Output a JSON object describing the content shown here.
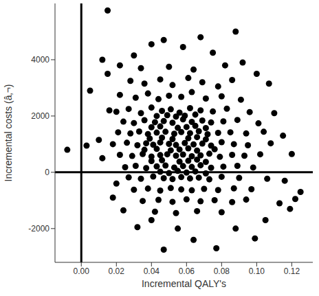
{
  "chart_data": {
    "type": "scatter",
    "xlabel": "Incremental QALY's",
    "ylabel": "Incremental costs (â‚¬)",
    "color": "#000000",
    "marker": "circle",
    "grid": false,
    "xlim": [
      -0.015,
      0.132
    ],
    "xticks": [
      {
        "value": 0,
        "label": "0.00"
      },
      0.02,
      0.04,
      0.06,
      0.08,
      {
        "value": 0.1,
        "label": "0.10"
      },
      0.12
    ],
    "ylim": [
      -3200,
      6000
    ],
    "yticks": [
      -2000,
      0,
      2000,
      4000
    ],
    "hlines": [
      0
    ],
    "vlines": [
      0
    ],
    "x": [
      0.015,
      -0.008,
      0.003,
      0.088,
      0.068,
      0.047,
      0.04,
      0.125,
      0.122,
      0.047,
      0.077,
      0.099,
      0.032,
      0.119,
      0.12,
      0.107,
      0.012,
      0.005,
      0.01,
      0.012,
      0.116,
      0.113,
      0.064,
      0.024,
      0.018,
      0.015,
      0.022,
      0.03,
      0.058,
      0.075,
      0.092,
      0.1,
      0.11,
      0.115,
      0.105,
      0.088,
      0.055,
      0.04,
      0.02,
      0.016,
      0.028,
      0.036,
      0.045,
      0.052,
      0.061,
      0.069,
      0.078,
      0.086,
      0.022,
      0.031,
      0.038,
      0.044,
      0.05,
      0.057,
      0.063,
      0.071,
      0.08,
      0.091,
      0.02,
      0.027,
      0.034,
      0.04,
      0.046,
      0.051,
      0.056,
      0.062,
      0.068,
      0.075,
      0.083,
      0.096,
      0.024,
      0.03,
      0.036,
      0.042,
      0.047,
      0.052,
      0.058,
      0.063,
      0.069,
      0.074,
      0.081,
      0.089,
      0.101,
      0.021,
      0.028,
      0.033,
      0.038,
      0.043,
      0.048,
      0.053,
      0.057,
      0.062,
      0.067,
      0.072,
      0.078,
      0.085,
      0.094,
      0.104,
      0.018,
      0.026,
      0.032,
      0.037,
      0.041,
      0.045,
      0.05,
      0.054,
      0.059,
      0.064,
      0.069,
      0.074,
      0.08,
      0.087,
      0.095,
      0.108,
      0.022,
      0.029,
      0.035,
      0.04,
      0.045,
      0.049,
      0.054,
      0.058,
      0.063,
      0.068,
      0.073,
      0.079,
      0.086,
      0.093,
      0.102,
      0.025,
      0.031,
      0.037,
      0.043,
      0.048,
      0.053,
      0.058,
      0.063,
      0.068,
      0.074,
      0.081,
      0.089,
      0.098,
      0.027,
      0.034,
      0.041,
      0.047,
      0.052,
      0.057,
      0.062,
      0.067,
      0.073,
      0.08,
      0.09,
      0.106,
      0.03,
      0.038,
      0.045,
      0.051,
      0.057,
      0.063,
      0.07,
      0.078,
      0.087,
      0.097,
      0.035,
      0.044,
      0.052,
      0.06,
      0.068,
      0.076,
      0.086,
      0.094,
      0.042,
      0.054,
      0.066,
      0.08,
      0.034,
      0.05,
      0.064,
      0.082,
      0.039,
      0.046,
      0.052,
      0.061,
      0.066,
      0.071,
      0.036,
      0.043,
      0.051,
      0.056,
      0.061,
      0.066,
      0.076,
      0.04,
      0.046,
      0.056,
      0.061,
      0.066,
      0.071,
      0.04,
      0.045,
      0.055,
      0.06,
      0.065,
      0.071,
      0.043,
      0.049,
      0.054,
      0.059,
      0.065,
      0.045,
      0.05,
      0.055,
      0.06,
      0.065,
      0.071
    ],
    "values": [
      5750,
      800,
      950,
      5000,
      4800,
      4700,
      4550,
      -700,
      -950,
      -2750,
      -2700,
      -2350,
      -1950,
      -1300,
      650,
      3150,
      4000,
      2900,
      1150,
      500,
      -300,
      -1100,
      -2400,
      -1350,
      -900,
      3500,
      3800,
      4150,
      4450,
      4250,
      3900,
      3500,
      2100,
      1300,
      -1700,
      -2000,
      -2000,
      -1700,
      -400,
      2200,
      3250,
      3150,
      3300,
      3100,
      3350,
      3200,
      3050,
      3280,
      2750,
      2650,
      2800,
      2600,
      2720,
      2680,
      2850,
      2620,
      2700,
      2580,
      2150,
      2250,
      2100,
      2300,
      2180,
      2240,
      2120,
      2280,
      2200,
      2160,
      2260,
      2140,
      1800,
      1750,
      1850,
      1780,
      1820,
      1760,
      1880,
      1790,
      1840,
      1770,
      1810,
      1860,
      1740,
      1420,
      1380,
      1450,
      1360,
      1410,
      1440,
      1370,
      1430,
      1390,
      1460,
      1350,
      1400,
      1420,
      1380,
      1440,
      1000,
      1050,
      960,
      1030,
      980,
      1060,
      1010,
      970,
      1040,
      990,
      1020,
      950,
      1070,
      1000,
      960,
      1030,
      620,
      580,
      650,
      560,
      610,
      640,
      590,
      630,
      570,
      600,
      660,
      550,
      620,
      590,
      640,
      180,
      230,
      150,
      210,
      240,
      170,
      220,
      190,
      250,
      160,
      200,
      230,
      170,
      -180,
      -230,
      -150,
      -210,
      -240,
      -170,
      -220,
      -190,
      -250,
      -160,
      -200,
      -230,
      -620,
      -580,
      -650,
      -560,
      -610,
      -640,
      -590,
      -630,
      -570,
      -600,
      -1020,
      -980,
      -1050,
      -960,
      -1030,
      -990,
      -1060,
      -970,
      -1400,
      -1450,
      -1380,
      -1420,
      3700,
      3750,
      3650,
      3800,
      1200,
      1230,
      1180,
      1210,
      1250,
      1170,
      800,
      830,
      780,
      810,
      850,
      770,
      820,
      400,
      430,
      380,
      410,
      450,
      370,
      1600,
      1630,
      1580,
      1610,
      1650,
      1570,
      2000,
      2030,
      1980,
      2010,
      2050,
      20,
      -30,
      50,
      -10,
      30,
      -40
    ]
  }
}
